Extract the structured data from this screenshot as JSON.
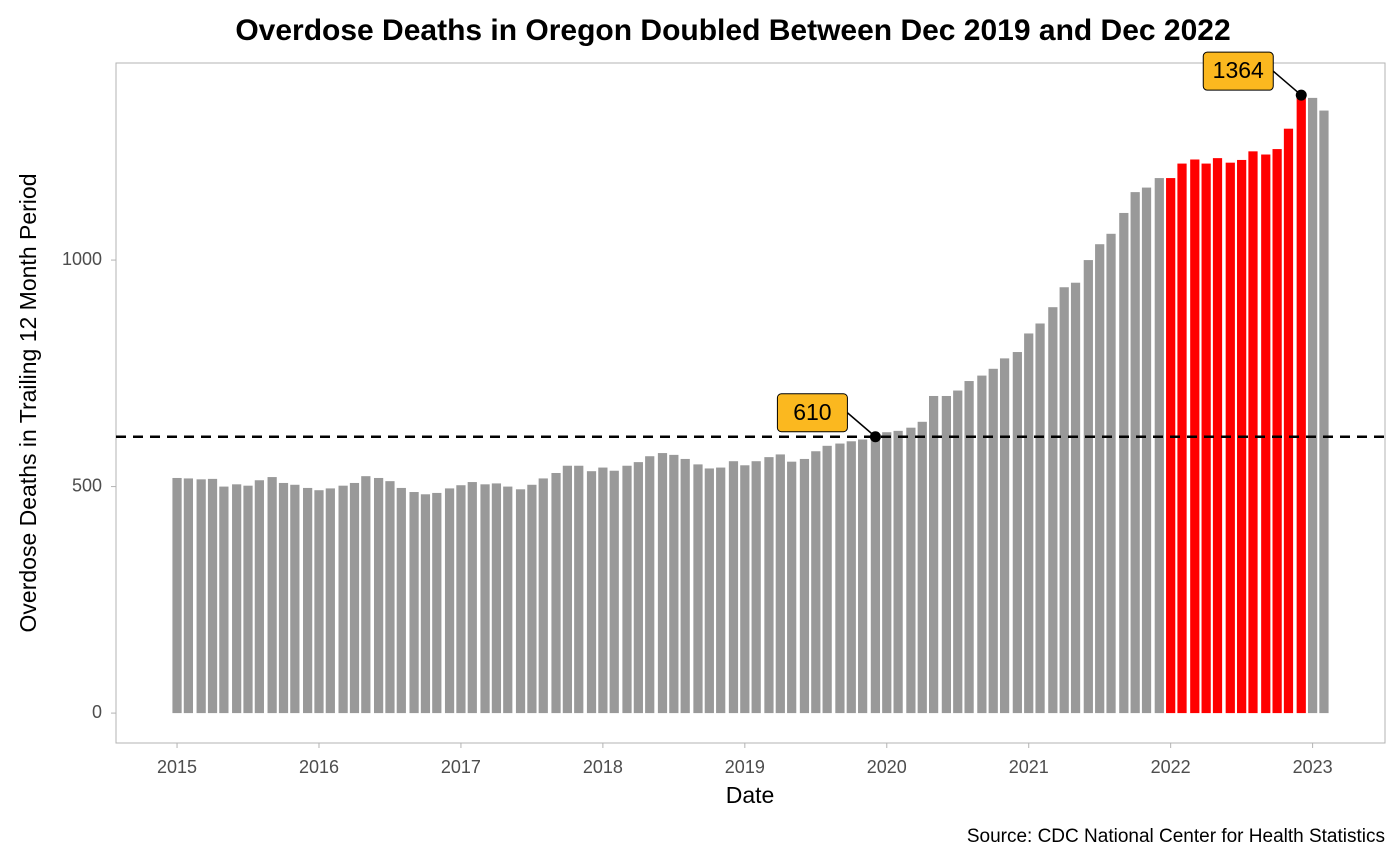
{
  "chart_data": {
    "type": "bar",
    "title": "Overdose Deaths in Oregon Doubled Between Dec 2019 and Dec 2022",
    "x_label": "Date",
    "y_label": "Overdose Deaths in Trailing 12 Month Period",
    "source": "Source: CDC National Center for Health Statistics",
    "x": [
      2015.0,
      2015.08,
      2015.17,
      2015.25,
      2015.33,
      2015.42,
      2015.5,
      2015.58,
      2015.67,
      2015.75,
      2015.83,
      2015.92,
      2016.0,
      2016.08,
      2016.17,
      2016.25,
      2016.33,
      2016.42,
      2016.5,
      2016.58,
      2016.67,
      2016.75,
      2016.83,
      2016.92,
      2017.0,
      2017.08,
      2017.17,
      2017.25,
      2017.33,
      2017.42,
      2017.5,
      2017.58,
      2017.67,
      2017.75,
      2017.83,
      2017.92,
      2018.0,
      2018.08,
      2018.17,
      2018.25,
      2018.33,
      2018.42,
      2018.5,
      2018.58,
      2018.67,
      2018.75,
      2018.83,
      2018.92,
      2019.0,
      2019.08,
      2019.17,
      2019.25,
      2019.33,
      2019.42,
      2019.5,
      2019.58,
      2019.67,
      2019.75,
      2019.83,
      2019.92,
      2020.0,
      2020.08,
      2020.17,
      2020.25,
      2020.33,
      2020.42,
      2020.5,
      2020.58,
      2020.67,
      2020.75,
      2020.83,
      2020.92,
      2021.0,
      2021.08,
      2021.17,
      2021.25,
      2021.33,
      2021.42,
      2021.5,
      2021.58,
      2021.67,
      2021.75,
      2021.83,
      2021.92,
      2022.0,
      2022.08,
      2022.17,
      2022.25,
      2022.33,
      2022.42,
      2022.5,
      2022.58,
      2022.67,
      2022.75,
      2022.83,
      2022.92,
      2023.0,
      2023.08
    ],
    "values": [
      519,
      518,
      516,
      517,
      500,
      505,
      502,
      514,
      521,
      508,
      504,
      497,
      492,
      496,
      502,
      508,
      523,
      519,
      512,
      497,
      488,
      483,
      486,
      496,
      503,
      510,
      505,
      507,
      500,
      494,
      504,
      518,
      530,
      546,
      546,
      534,
      542,
      535,
      546,
      554,
      567,
      574,
      570,
      561,
      549,
      540,
      542,
      556,
      547,
      556,
      565,
      571,
      555,
      561,
      578,
      590,
      595,
      600,
      604,
      610,
      620,
      623,
      630,
      643,
      700,
      700,
      712,
      733,
      745,
      760,
      783,
      797,
      838,
      860,
      896,
      940,
      950,
      1000,
      1035,
      1058,
      1104,
      1150,
      1160,
      1181,
      1181,
      1213,
      1222,
      1213,
      1225,
      1215,
      1221,
      1240,
      1233,
      1245,
      1290,
      1364,
      1358,
      1330
    ],
    "bar_colors": [
      "#999999",
      "#999999",
      "#999999",
      "#999999",
      "#999999",
      "#999999",
      "#999999",
      "#999999",
      "#999999",
      "#999999",
      "#999999",
      "#999999",
      "#999999",
      "#999999",
      "#999999",
      "#999999",
      "#999999",
      "#999999",
      "#999999",
      "#999999",
      "#999999",
      "#999999",
      "#999999",
      "#999999",
      "#999999",
      "#999999",
      "#999999",
      "#999999",
      "#999999",
      "#999999",
      "#999999",
      "#999999",
      "#999999",
      "#999999",
      "#999999",
      "#999999",
      "#999999",
      "#999999",
      "#999999",
      "#999999",
      "#999999",
      "#999999",
      "#999999",
      "#999999",
      "#999999",
      "#999999",
      "#999999",
      "#999999",
      "#999999",
      "#999999",
      "#999999",
      "#999999",
      "#999999",
      "#999999",
      "#999999",
      "#999999",
      "#999999",
      "#999999",
      "#999999",
      "#999999",
      "#999999",
      "#999999",
      "#999999",
      "#999999",
      "#999999",
      "#999999",
      "#999999",
      "#999999",
      "#999999",
      "#999999",
      "#999999",
      "#999999",
      "#999999",
      "#999999",
      "#999999",
      "#999999",
      "#999999",
      "#999999",
      "#999999",
      "#999999",
      "#999999",
      "#999999",
      "#999999",
      "#999999",
      "#ff0000",
      "#ff0000",
      "#ff0000",
      "#ff0000",
      "#ff0000",
      "#ff0000",
      "#ff0000",
      "#ff0000",
      "#ff0000",
      "#ff0000",
      "#ff0000",
      "#ff0000",
      "#999999",
      "#999999"
    ],
    "hline": 610,
    "annotations": [
      {
        "x": 2019.92,
        "label": 610
      },
      {
        "x": 2022.92,
        "label": 1364
      }
    ],
    "annotation_color": "#fbb81f",
    "xlim": [
      2014.57,
      2023.51
    ],
    "xticks": [
      2015,
      2016,
      2017,
      2018,
      2019,
      2020,
      2021,
      2022,
      2023
    ],
    "ylim": [
      -66,
      1435
    ],
    "yticks": [
      0,
      500,
      1000
    ],
    "grid": false
  }
}
